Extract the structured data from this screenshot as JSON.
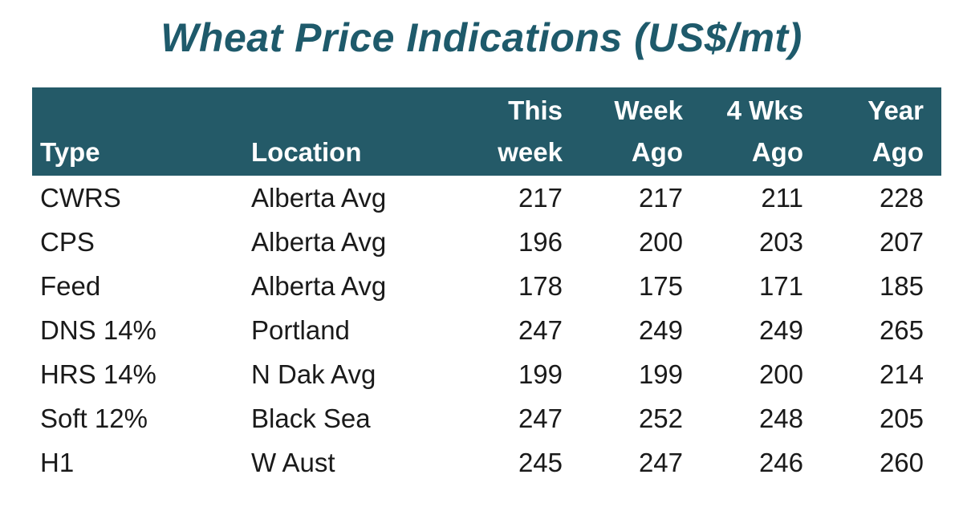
{
  "chart_data": {
    "type": "table",
    "title": "Wheat Price Indications (US$/mt)",
    "columns": [
      {
        "key": "type",
        "lines": [
          "",
          "Type"
        ]
      },
      {
        "key": "location",
        "lines": [
          "",
          "Location"
        ]
      },
      {
        "key": "this_week",
        "lines": [
          "This",
          "week"
        ]
      },
      {
        "key": "week_ago",
        "lines": [
          "Week",
          "Ago"
        ]
      },
      {
        "key": "four_wks_ago",
        "lines": [
          "4 Wks",
          "Ago"
        ]
      },
      {
        "key": "year_ago",
        "lines": [
          "Year",
          "Ago"
        ]
      }
    ],
    "rows": [
      {
        "type": "CWRS",
        "location": "Alberta Avg",
        "values": [
          217,
          217,
          211,
          228
        ]
      },
      {
        "type": "CPS",
        "location": "Alberta Avg",
        "values": [
          196,
          200,
          203,
          207
        ]
      },
      {
        "type": "Feed",
        "location": "Alberta Avg",
        "values": [
          178,
          175,
          171,
          185
        ]
      },
      {
        "type": "DNS 14%",
        "location": "Portland",
        "values": [
          247,
          249,
          249,
          265
        ]
      },
      {
        "type": "HRS 14%",
        "location": "N Dak Avg",
        "values": [
          199,
          199,
          200,
          214
        ]
      },
      {
        "type": "Soft 12%",
        "location": "Black Sea",
        "values": [
          247,
          252,
          248,
          205
        ]
      },
      {
        "type": "H1",
        "location": "W Aust",
        "values": [
          245,
          247,
          246,
          260
        ]
      }
    ]
  },
  "colors": {
    "title": "#1e5a6b",
    "header_bg": "#245a68",
    "header_text": "#ffffff",
    "body_text": "#1a1a1a"
  }
}
